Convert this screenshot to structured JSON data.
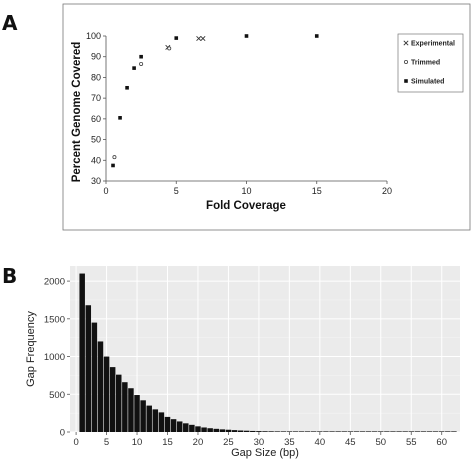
{
  "figure": {
    "panel_a_label": "A",
    "panel_b_label": "B"
  },
  "chart_data": [
    {
      "type": "scatter",
      "panel": "A",
      "title": "",
      "xlabel": "Fold Coverage",
      "ylabel": "Percent  Genome Covered",
      "xlim": [
        0,
        20
      ],
      "ylim": [
        30,
        100
      ],
      "xticks": [
        0,
        5,
        10,
        15,
        20
      ],
      "yticks": [
        30,
        40,
        50,
        60,
        70,
        80,
        90,
        100
      ],
      "grid": false,
      "legend_position": "right",
      "series": [
        {
          "name": "Experimental",
          "marker": "x",
          "points": [
            [
              4.4,
              94.5
            ],
            [
              6.6,
              98.8
            ],
            [
              6.9,
              98.8
            ]
          ]
        },
        {
          "name": "Trimmed",
          "marker": "circle",
          "points": [
            [
              0.6,
              41.5
            ],
            [
              2.5,
              86.5
            ],
            [
              4.5,
              94.0
            ]
          ]
        },
        {
          "name": "Simulated",
          "marker": "square",
          "points": [
            [
              0.5,
              37.5
            ],
            [
              1.0,
              60.5
            ],
            [
              1.5,
              75.0
            ],
            [
              2.0,
              84.5
            ],
            [
              2.5,
              90.0
            ],
            [
              5.0,
              99.0
            ],
            [
              10.0,
              100.0
            ],
            [
              15.0,
              100.0
            ]
          ]
        }
      ]
    },
    {
      "type": "bar",
      "panel": "B",
      "title": "",
      "xlabel": "Gap Size (bp)",
      "ylabel": "Gap Frequency",
      "xlim": [
        -1,
        63
      ],
      "ylim": [
        0,
        2200
      ],
      "xticks": [
        0,
        5,
        10,
        15,
        20,
        25,
        30,
        35,
        40,
        45,
        50,
        55,
        60
      ],
      "yticks": [
        0,
        500,
        1000,
        1500,
        2000
      ],
      "bar_color": "#111111",
      "grid": true,
      "background": "#ebebeb",
      "x": [
        1,
        2,
        3,
        4,
        5,
        6,
        7,
        8,
        9,
        10,
        11,
        12,
        13,
        14,
        15,
        16,
        17,
        18,
        19,
        20,
        21,
        22,
        23,
        24,
        25,
        26,
        27,
        28,
        29,
        30,
        31,
        32,
        33,
        34,
        35,
        36,
        37,
        38,
        39,
        40,
        41,
        42,
        43,
        44,
        45,
        46,
        47,
        48,
        49,
        50,
        51,
        52,
        53,
        54,
        55,
        56,
        57,
        58,
        59,
        60,
        61,
        62
      ],
      "values": [
        2100,
        1680,
        1450,
        1200,
        1000,
        860,
        760,
        660,
        580,
        490,
        420,
        350,
        300,
        260,
        200,
        170,
        140,
        115,
        95,
        75,
        60,
        50,
        42,
        35,
        30,
        25,
        20,
        17,
        14,
        12,
        10,
        9,
        8,
        7,
        6,
        5,
        5,
        4,
        4,
        3,
        3,
        3,
        2,
        2,
        2,
        2,
        2,
        1,
        1,
        1,
        1,
        1,
        1,
        1,
        1,
        1,
        1,
        1,
        1,
        1,
        1,
        1
      ]
    }
  ]
}
